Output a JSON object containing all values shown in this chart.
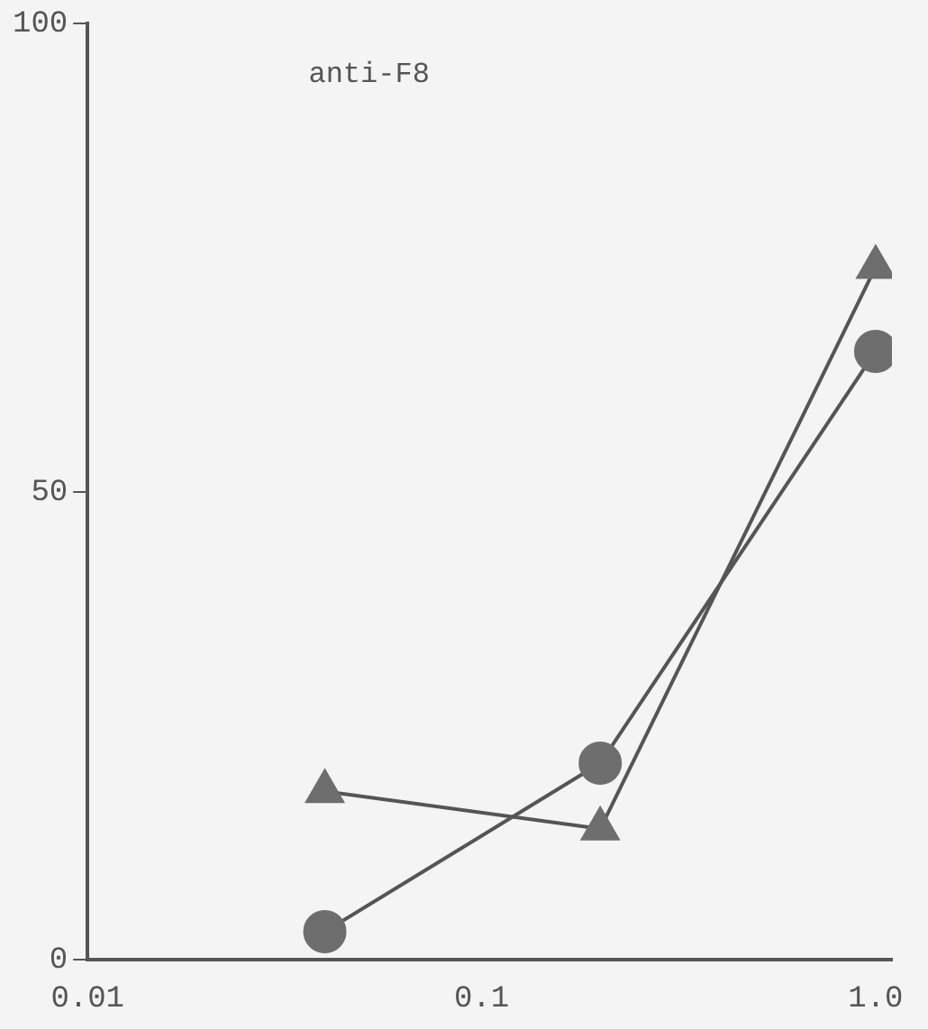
{
  "chart_data": {
    "type": "line",
    "title": "anti-F8",
    "log": "x",
    "grid": false,
    "legend": false,
    "line_style": "solid",
    "xlim": [
      0.01,
      1.1
    ],
    "xticks": [
      0.01,
      0.1,
      {
        "value": 1,
        "label": "1.0"
      }
    ],
    "ylim": [
      0,
      100
    ],
    "yticks": [
      0,
      50,
      100
    ],
    "series": [
      {
        "color": "#6e6e6e",
        "marker": "triangle",
        "x": [
          0.04,
          0.2,
          1
        ],
        "values": [
          18,
          14,
          74
        ]
      },
      {
        "color": "#6e6e6e",
        "marker": "circle",
        "x": [
          0.04,
          0.2,
          1
        ],
        "values": [
          3,
          21,
          65
        ]
      }
    ]
  }
}
